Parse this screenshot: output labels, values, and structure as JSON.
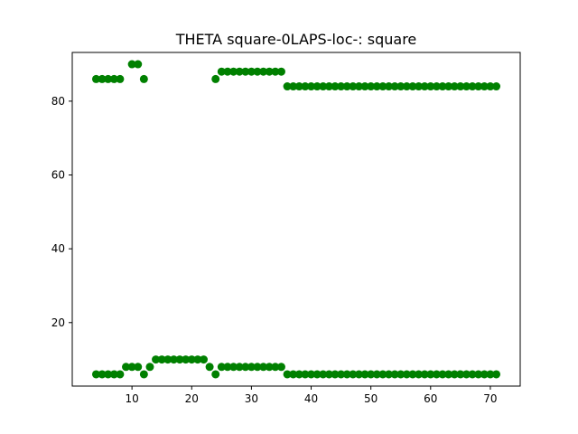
{
  "chart_data": {
    "type": "scatter",
    "title": "THETA square-0LAPS-loc-: square",
    "xlabel": "",
    "ylabel": "",
    "xlim": [
      0,
      75
    ],
    "ylim": [
      2.8,
      93.2
    ],
    "xticks": [
      10,
      20,
      30,
      40,
      50,
      60,
      70
    ],
    "yticks": [
      20,
      40,
      60,
      80
    ],
    "grid": false,
    "legend": "none",
    "marker_color": "#008000",
    "series": [
      {
        "points": [
          [
            4,
            86
          ],
          [
            5,
            86
          ],
          [
            6,
            86
          ],
          [
            7,
            86
          ],
          [
            8,
            86
          ],
          [
            10,
            90
          ],
          [
            11,
            90
          ],
          [
            12,
            86
          ],
          [
            24,
            86
          ],
          [
            25,
            88
          ],
          [
            26,
            88
          ],
          [
            27,
            88
          ],
          [
            28,
            88
          ],
          [
            29,
            88
          ],
          [
            30,
            88
          ],
          [
            31,
            88
          ],
          [
            32,
            88
          ],
          [
            33,
            88
          ],
          [
            34,
            88
          ],
          [
            35,
            88
          ],
          [
            36,
            84
          ],
          [
            37,
            84
          ],
          [
            38,
            84
          ],
          [
            39,
            84
          ],
          [
            40,
            84
          ],
          [
            41,
            84
          ],
          [
            42,
            84
          ],
          [
            43,
            84
          ],
          [
            44,
            84
          ],
          [
            45,
            84
          ],
          [
            46,
            84
          ],
          [
            47,
            84
          ],
          [
            48,
            84
          ],
          [
            49,
            84
          ],
          [
            50,
            84
          ],
          [
            51,
            84
          ],
          [
            52,
            84
          ],
          [
            53,
            84
          ],
          [
            54,
            84
          ],
          [
            55,
            84
          ],
          [
            56,
            84
          ],
          [
            57,
            84
          ],
          [
            58,
            84
          ],
          [
            59,
            84
          ],
          [
            60,
            84
          ],
          [
            61,
            84
          ],
          [
            62,
            84
          ],
          [
            63,
            84
          ],
          [
            64,
            84
          ],
          [
            65,
            84
          ],
          [
            66,
            84
          ],
          [
            67,
            84
          ],
          [
            68,
            84
          ],
          [
            69,
            84
          ],
          [
            70,
            84
          ],
          [
            71,
            84
          ],
          [
            4,
            6
          ],
          [
            5,
            6
          ],
          [
            6,
            6
          ],
          [
            7,
            6
          ],
          [
            8,
            6
          ],
          [
            9,
            8
          ],
          [
            10,
            8
          ],
          [
            11,
            8
          ],
          [
            12,
            6
          ],
          [
            13,
            8
          ],
          [
            14,
            10
          ],
          [
            15,
            10
          ],
          [
            16,
            10
          ],
          [
            17,
            10
          ],
          [
            18,
            10
          ],
          [
            19,
            10
          ],
          [
            20,
            10
          ],
          [
            21,
            10
          ],
          [
            22,
            10
          ],
          [
            23,
            8
          ],
          [
            24,
            6
          ],
          [
            25,
            8
          ],
          [
            26,
            8
          ],
          [
            27,
            8
          ],
          [
            28,
            8
          ],
          [
            29,
            8
          ],
          [
            30,
            8
          ],
          [
            31,
            8
          ],
          [
            32,
            8
          ],
          [
            33,
            8
          ],
          [
            34,
            8
          ],
          [
            35,
            8
          ],
          [
            36,
            6
          ],
          [
            37,
            6
          ],
          [
            38,
            6
          ],
          [
            39,
            6
          ],
          [
            40,
            6
          ],
          [
            41,
            6
          ],
          [
            42,
            6
          ],
          [
            43,
            6
          ],
          [
            44,
            6
          ],
          [
            45,
            6
          ],
          [
            46,
            6
          ],
          [
            47,
            6
          ],
          [
            48,
            6
          ],
          [
            49,
            6
          ],
          [
            50,
            6
          ],
          [
            51,
            6
          ],
          [
            52,
            6
          ],
          [
            53,
            6
          ],
          [
            54,
            6
          ],
          [
            55,
            6
          ],
          [
            56,
            6
          ],
          [
            57,
            6
          ],
          [
            58,
            6
          ],
          [
            59,
            6
          ],
          [
            60,
            6
          ],
          [
            61,
            6
          ],
          [
            62,
            6
          ],
          [
            63,
            6
          ],
          [
            64,
            6
          ],
          [
            65,
            6
          ],
          [
            66,
            6
          ],
          [
            67,
            6
          ],
          [
            68,
            6
          ],
          [
            69,
            6
          ],
          [
            70,
            6
          ],
          [
            71,
            6
          ]
        ]
      }
    ]
  }
}
